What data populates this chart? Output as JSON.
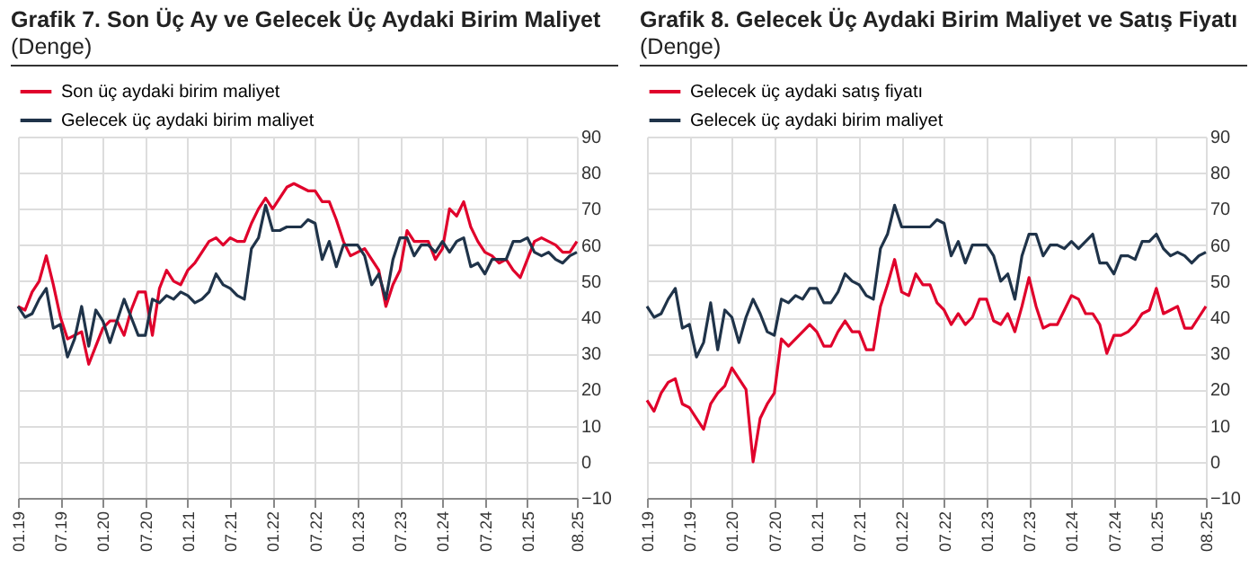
{
  "chart_data": [
    {
      "type": "line",
      "title": "Grafik 7. Son Üç Ay ve Gelecek Üç Aydaki Birim Maliyet",
      "subtitle": "(Denge)",
      "categories": [
        "01.19",
        null,
        null,
        null,
        null,
        null,
        "07.19",
        null,
        null,
        null,
        null,
        null,
        "01.20",
        null,
        null,
        null,
        null,
        null,
        "07.20",
        null,
        null,
        null,
        null,
        null,
        "01.21",
        null,
        null,
        null,
        null,
        null,
        "07.21",
        null,
        null,
        null,
        null,
        null,
        "01.22",
        null,
        null,
        null,
        null,
        null,
        "07.22",
        null,
        null,
        null,
        null,
        null,
        "01.23",
        null,
        null,
        null,
        null,
        null,
        "07.23",
        null,
        null,
        null,
        null,
        null,
        "01.24",
        null,
        null,
        null,
        null,
        null,
        "07.24",
        null,
        null,
        null,
        null,
        null,
        "01.25",
        null,
        null,
        null,
        null,
        null,
        null,
        "08.25"
      ],
      "series": [
        {
          "name": "Son üç aydaki birim maliyet",
          "color": "#e0002b",
          "values": [
            43,
            42,
            47,
            50,
            57,
            49,
            40,
            34,
            35,
            36,
            27,
            32,
            37,
            39,
            39,
            35,
            42,
            47,
            47,
            35,
            48,
            53,
            50,
            49,
            53,
            55,
            58,
            61,
            62,
            60,
            62,
            61,
            61,
            66,
            70,
            73,
            70,
            73,
            76,
            77,
            76,
            75,
            75,
            72,
            72,
            67,
            61,
            57,
            58,
            59,
            56,
            53,
            43,
            49,
            53,
            64,
            61,
            61,
            61,
            56,
            59,
            70,
            68,
            72,
            65,
            61,
            58,
            57,
            55,
            56,
            53,
            51,
            56,
            61,
            62,
            61,
            60,
            58,
            58,
            61
          ]
        },
        {
          "name": "Gelecek üç aydaki birim maliyet",
          "color": "#1f3349",
          "values": [
            43,
            40,
            41,
            45,
            48,
            37,
            38,
            29,
            34,
            43,
            32,
            42,
            39,
            33,
            39,
            45,
            40,
            35,
            35,
            45,
            44,
            46,
            45,
            47,
            46,
            44,
            45,
            47,
            52,
            49,
            48,
            46,
            45,
            59,
            62,
            71,
            64,
            64,
            65,
            65,
            65,
            67,
            66,
            56,
            61,
            54,
            60,
            60,
            60,
            57,
            49,
            52,
            45,
            56,
            62,
            62,
            57,
            60,
            60,
            58,
            61,
            58,
            61,
            62,
            54,
            55,
            52,
            56,
            56,
            56,
            61,
            61,
            62,
            58,
            57,
            58,
            56,
            55,
            57,
            58
          ]
        }
      ],
      "ylim": [
        -10,
        90
      ],
      "yticks": [
        -10,
        0,
        10,
        20,
        30,
        40,
        50,
        60,
        70,
        80,
        90
      ],
      "grid": true,
      "legend": "top"
    },
    {
      "type": "line",
      "title": "Grafik 8. Gelecek Üç Aydaki Birim Maliyet ve Satış Fiyatı",
      "subtitle": "(Denge)",
      "categories": [
        "01.19",
        null,
        null,
        null,
        null,
        null,
        "07.19",
        null,
        null,
        null,
        null,
        null,
        "01.20",
        null,
        null,
        null,
        null,
        null,
        "07.20",
        null,
        null,
        null,
        null,
        null,
        "01.21",
        null,
        null,
        null,
        null,
        null,
        "07.21",
        null,
        null,
        null,
        null,
        null,
        "01.22",
        null,
        null,
        null,
        null,
        null,
        "07.22",
        null,
        null,
        null,
        null,
        null,
        "01.23",
        null,
        null,
        null,
        null,
        null,
        "07.23",
        null,
        null,
        null,
        null,
        null,
        "01.24",
        null,
        null,
        null,
        null,
        null,
        "07.24",
        null,
        null,
        null,
        null,
        null,
        "01.25",
        null,
        null,
        null,
        null,
        null,
        null,
        "08.25"
      ],
      "series": [
        {
          "name": "Gelecek üç aydaki satış fiyatı",
          "color": "#e0002b",
          "values": [
            17,
            14,
            19,
            22,
            23,
            16,
            15,
            12,
            9,
            16,
            19,
            21,
            26,
            23,
            20,
            0,
            12,
            16,
            19,
            34,
            32,
            34,
            36,
            38,
            36,
            32,
            32,
            36,
            39,
            36,
            36,
            31,
            31,
            43,
            49,
            56,
            47,
            46,
            52,
            49,
            49,
            44,
            42,
            38,
            41,
            38,
            40,
            45,
            45,
            39,
            38,
            41,
            36,
            43,
            51,
            43,
            37,
            38,
            38,
            42,
            46,
            45,
            41,
            41,
            38,
            30,
            35,
            35,
            36,
            38,
            41,
            42,
            48,
            41,
            42,
            43,
            37,
            37,
            40,
            43
          ]
        },
        {
          "name": "Gelecek üç aydaki birim maliyet",
          "color": "#1f3349",
          "values": [
            43,
            40,
            41,
            45,
            48,
            37,
            38,
            29,
            33,
            44,
            31,
            42,
            40,
            33,
            40,
            45,
            41,
            36,
            35,
            45,
            44,
            46,
            45,
            48,
            48,
            44,
            44,
            47,
            52,
            50,
            49,
            46,
            45,
            59,
            63,
            71,
            65,
            65,
            65,
            65,
            65,
            67,
            66,
            57,
            61,
            55,
            60,
            60,
            60,
            57,
            50,
            52,
            45,
            57,
            63,
            63,
            57,
            60,
            60,
            59,
            61,
            59,
            61,
            63,
            55,
            55,
            52,
            57,
            57,
            56,
            61,
            61,
            63,
            59,
            57,
            58,
            57,
            55,
            57,
            58
          ]
        }
      ],
      "ylim": [
        -10,
        90
      ],
      "yticks": [
        -10,
        0,
        10,
        20,
        30,
        40,
        50,
        60,
        70,
        80,
        90
      ],
      "grid": true,
      "legend": "top"
    }
  ]
}
